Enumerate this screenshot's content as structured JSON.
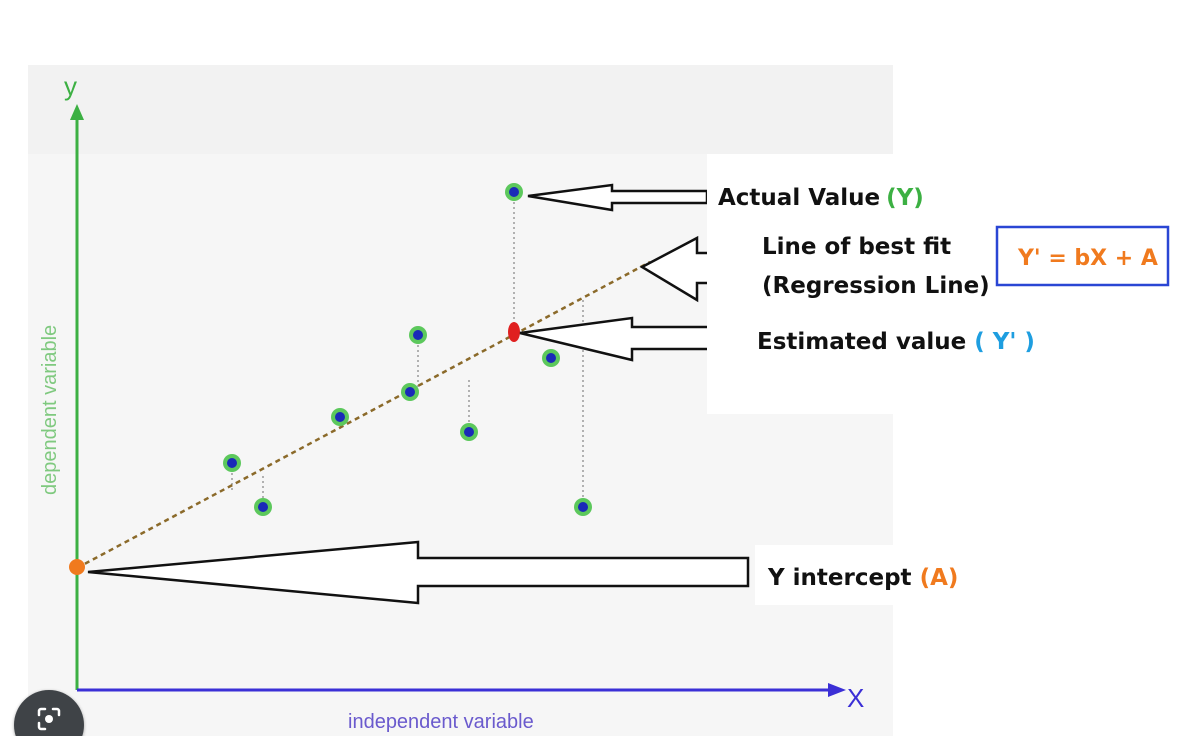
{
  "diagram": {
    "axes": {
      "y_letter": "y",
      "x_letter": "X",
      "y_label": "dependent variable",
      "x_label": "independent variable",
      "y_axis_color": "#3cb043",
      "x_axis_color": "#3b2fd6"
    },
    "labels": {
      "actual_value": {
        "text": "Actual Value",
        "symbol": "(Y)",
        "symbol_color": "#3cb043"
      },
      "best_fit_line1": "Line of best fit",
      "best_fit_line2": "(Regression Line)",
      "estimated_value": {
        "text": "Estimated value",
        "symbol": "( Y' )",
        "symbol_color": "#1e9ee0"
      },
      "y_intercept": {
        "text": "Y intercept",
        "symbol": "(A)",
        "symbol_color": "#f07a1e"
      },
      "equation": "Y' = bX + A",
      "equation_color": "#f07a1e",
      "equation_border_color": "#2a46d4"
    },
    "colors": {
      "point_fill": "#1a2ab8",
      "point_ring": "#5cc85c",
      "regression_line": "#8b6a2a",
      "intercept_point": "#f07a1e",
      "estimated_point": "#e02020",
      "residual_line": "#9a9a9a"
    }
  },
  "overlay": {
    "lens_icon": "google-lens-icon"
  }
}
